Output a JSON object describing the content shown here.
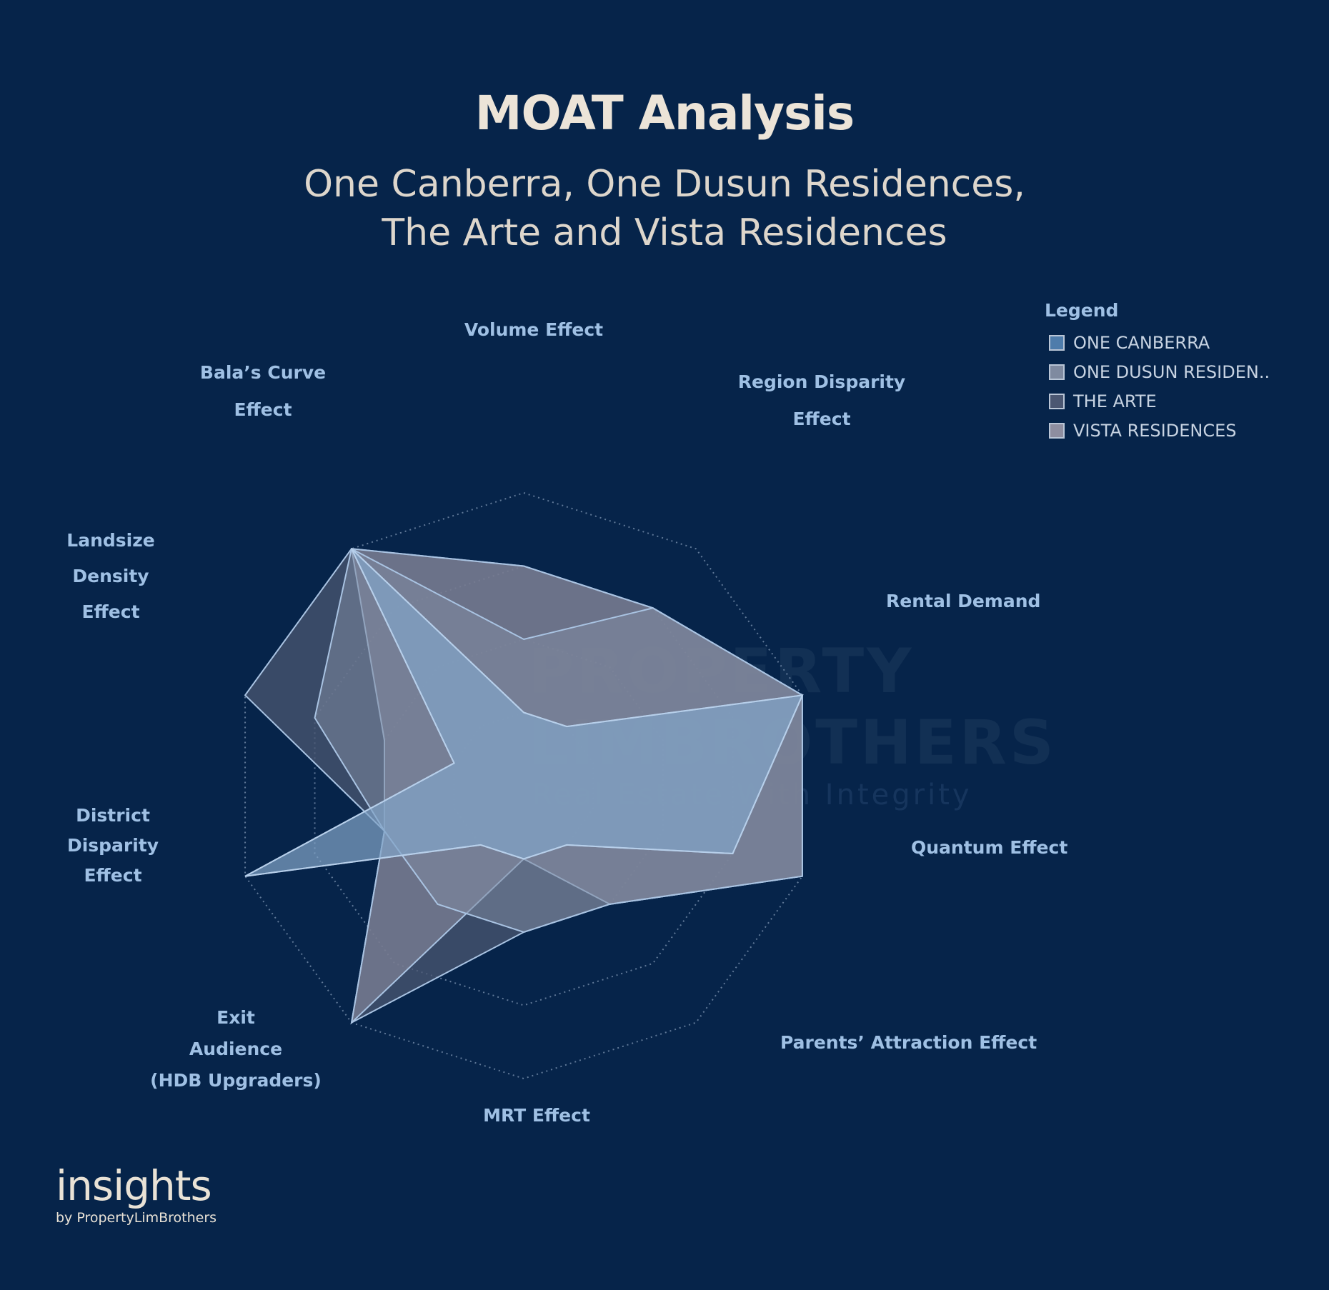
{
  "header": {
    "title": "MOAT Analysis",
    "subtitle_line1": "One Canberra, One Dusun Residences,",
    "subtitle_line2": "The Arte and Vista Residences"
  },
  "watermark": {
    "line1": "PROPERTY",
    "line2": "LIMBROTHERS",
    "line3": "Real Estate With Integrity"
  },
  "brand": {
    "name": "insights",
    "byline": "by PropertyLimBrothers"
  },
  "chart_data": {
    "type": "radar",
    "grid": true,
    "grid_levels": 4,
    "range": [
      0,
      4
    ],
    "legend_position": "top-right",
    "legend_title": "Legend",
    "axes": [
      {
        "label": [
          "Volume Effect"
        ]
      },
      {
        "label": [
          "Region Disparity",
          "Effect"
        ]
      },
      {
        "label": [
          "Rental Demand"
        ]
      },
      {
        "label": [
          "Quantum Effect"
        ]
      },
      {
        "label": [
          "Parents’ Attraction Effect"
        ]
      },
      {
        "label": [
          "MRT Effect"
        ]
      },
      {
        "label": [
          "Exit",
          "Audience",
          "(HDB Upgraders)"
        ]
      },
      {
        "label": [
          "District",
          "Disparity",
          "Effect"
        ]
      },
      {
        "label": [
          "Landsize",
          "Density",
          "Effect"
        ]
      },
      {
        "label": [
          "Bala’s Curve",
          "Effect"
        ]
      }
    ],
    "series": [
      {
        "name": "ONE CANBERRA",
        "color": "#4e7cab",
        "values": [
          1,
          1,
          4,
          3,
          1,
          1,
          1,
          4,
          1,
          4
        ]
      },
      {
        "name": "ONE DUSUN RESIDEN..",
        "color": "#7f8aa0",
        "values": [
          2,
          3,
          4,
          4,
          2,
          2,
          2,
          2,
          3,
          4
        ]
      },
      {
        "name": "THE ARTE",
        "color": "#4b5772",
        "values": [
          3,
          3,
          4,
          4,
          2,
          2,
          4,
          2,
          4,
          4
        ]
      },
      {
        "name": "VISTA RESIDENCES",
        "color": "#8e8ea0",
        "values": [
          3,
          3,
          4,
          4,
          2,
          1,
          4,
          2,
          2,
          4
        ]
      }
    ]
  }
}
